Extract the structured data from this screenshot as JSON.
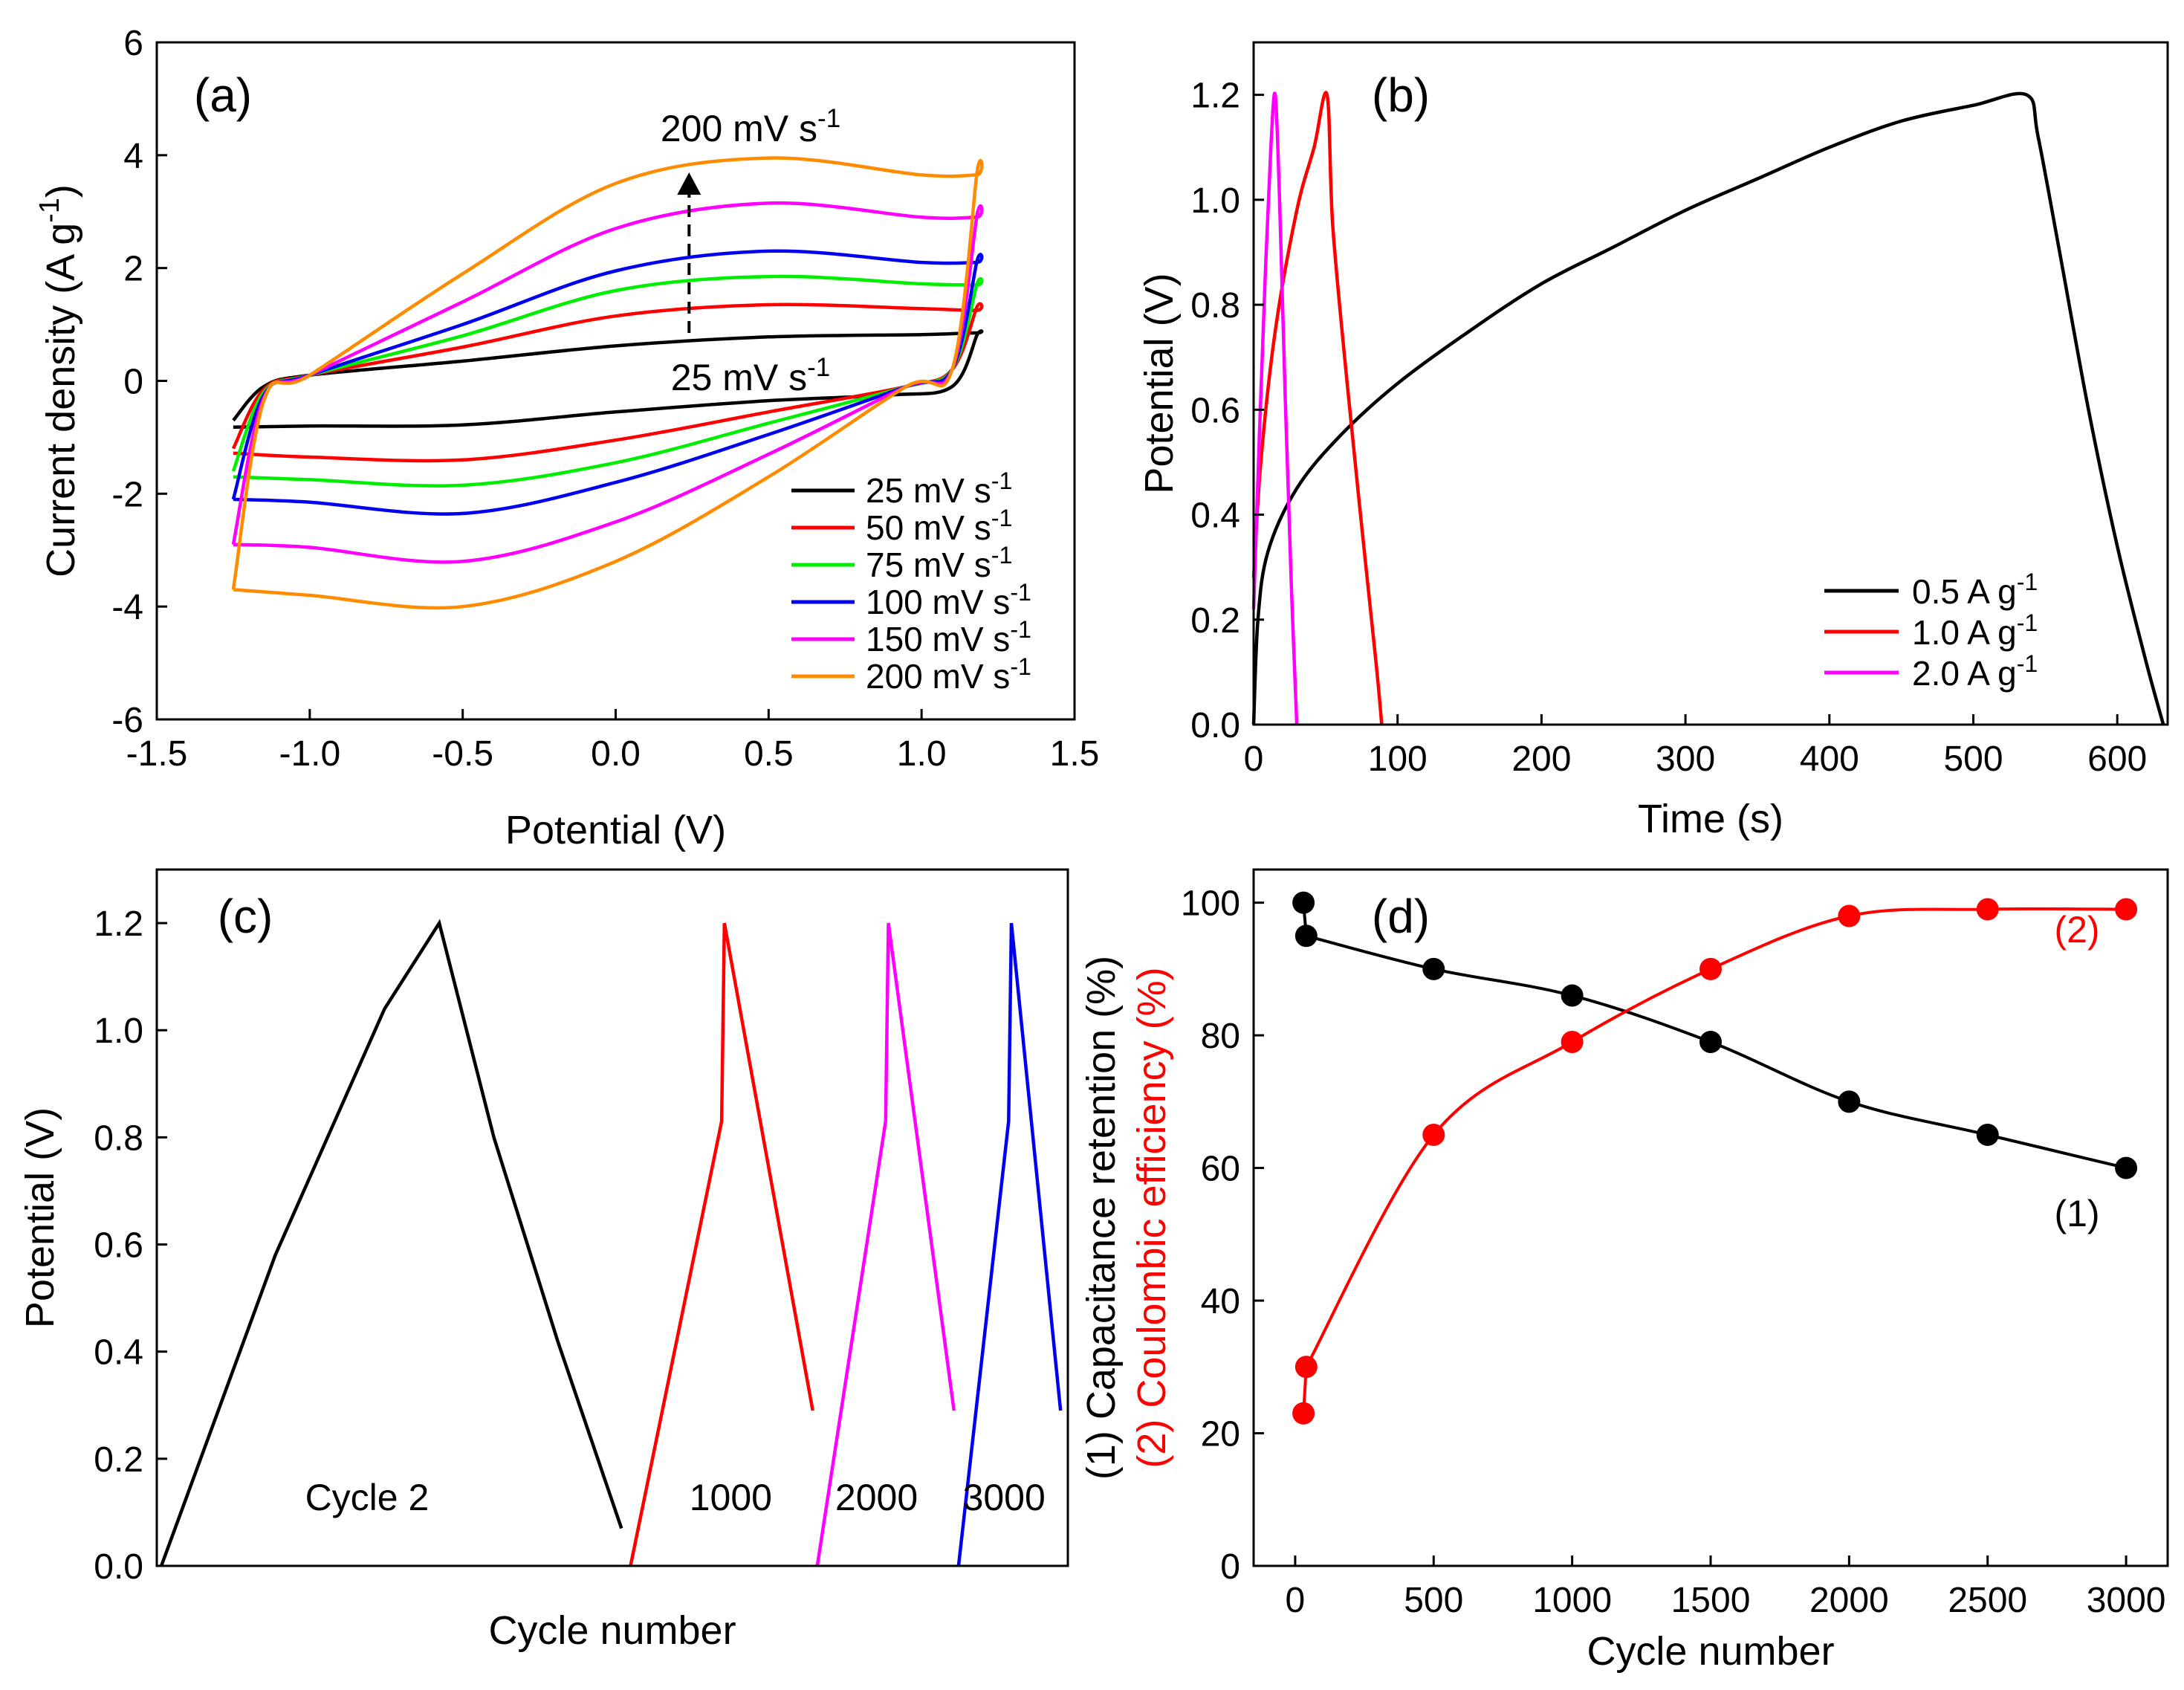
{
  "chart_data": [
    {
      "panel": "a",
      "type": "line",
      "panel_label": "(a)",
      "xlabel": "Potential (V)",
      "ylabel": "Current density (A g-1)",
      "xlim": [
        -1.5,
        1.5
      ],
      "ylim": [
        -6,
        6
      ],
      "xticks": [
        "-1.5",
        "-1.0",
        "-0.5",
        "0.0",
        "0.5",
        "1.0",
        "1.5"
      ],
      "yticks": [
        "-6",
        "-4",
        "-2",
        "0",
        "2",
        "4",
        "6"
      ],
      "annotations": {
        "top": "200 mV s-1",
        "bottom": "25 mV s-1"
      },
      "legend_position": "bottom-right",
      "series": [
        {
          "name": "25 mV s-1",
          "color": "#000000",
          "upper": [
            [
              -1.25,
              -0.7
            ],
            [
              -1.15,
              -0.1
            ],
            [
              -1.0,
              0.1
            ],
            [
              -0.5,
              0.35
            ],
            [
              0.0,
              0.62
            ],
            [
              0.5,
              0.78
            ],
            [
              1.0,
              0.82
            ],
            [
              1.18,
              0.85
            ]
          ],
          "lower": [
            [
              1.18,
              0.8
            ],
            [
              1.1,
              -0.1
            ],
            [
              0.9,
              -0.25
            ],
            [
              0.5,
              -0.35
            ],
            [
              0.0,
              -0.55
            ],
            [
              -0.5,
              -0.78
            ],
            [
              -1.0,
              -0.8
            ],
            [
              -1.25,
              -0.82
            ]
          ]
        },
        {
          "name": "50 mV s-1",
          "color": "#ff0000",
          "upper": [
            [
              -1.25,
              -1.2
            ],
            [
              -1.15,
              -0.15
            ],
            [
              -1.0,
              0.1
            ],
            [
              -0.5,
              0.6
            ],
            [
              0.0,
              1.15
            ],
            [
              0.5,
              1.35
            ],
            [
              1.0,
              1.28
            ],
            [
              1.18,
              1.25
            ]
          ],
          "lower": [
            [
              1.18,
              1.3
            ],
            [
              1.1,
              0.2
            ],
            [
              0.95,
              -0.1
            ],
            [
              0.5,
              -0.55
            ],
            [
              0.0,
              -1.05
            ],
            [
              -0.5,
              -1.4
            ],
            [
              -1.0,
              -1.35
            ],
            [
              -1.25,
              -1.28
            ]
          ]
        },
        {
          "name": "75 mV s-1",
          "color": "#00ee00",
          "upper": [
            [
              -1.25,
              -1.6
            ],
            [
              -1.15,
              -0.2
            ],
            [
              -1.0,
              0.1
            ],
            [
              -0.5,
              0.8
            ],
            [
              0.0,
              1.6
            ],
            [
              0.5,
              1.85
            ],
            [
              1.0,
              1.72
            ],
            [
              1.18,
              1.7
            ]
          ],
          "lower": [
            [
              1.18,
              1.7
            ],
            [
              1.1,
              0.2
            ],
            [
              0.95,
              -0.1
            ],
            [
              0.5,
              -0.75
            ],
            [
              0.0,
              -1.45
            ],
            [
              -0.5,
              -1.85
            ],
            [
              -1.0,
              -1.75
            ],
            [
              -1.25,
              -1.7
            ]
          ]
        },
        {
          "name": "100 mV s-1",
          "color": "#0000ee",
          "upper": [
            [
              -1.25,
              -2.1
            ],
            [
              -1.15,
              -0.25
            ],
            [
              -1.0,
              0.1
            ],
            [
              -0.5,
              1.0
            ],
            [
              0.0,
              1.95
            ],
            [
              0.5,
              2.3
            ],
            [
              1.0,
              2.1
            ],
            [
              1.18,
              2.1
            ]
          ],
          "lower": [
            [
              1.18,
              2.1
            ],
            [
              1.1,
              0.2
            ],
            [
              0.95,
              -0.1
            ],
            [
              0.5,
              -0.95
            ],
            [
              0.0,
              -1.8
            ],
            [
              -0.5,
              -2.35
            ],
            [
              -1.0,
              -2.15
            ],
            [
              -1.25,
              -2.1
            ]
          ]
        },
        {
          "name": "150 mV s-1",
          "color": "#ff00ff",
          "upper": [
            [
              -1.25,
              -2.9
            ],
            [
              -1.15,
              -0.3
            ],
            [
              -1.0,
              0.1
            ],
            [
              -0.5,
              1.4
            ],
            [
              0.0,
              2.7
            ],
            [
              0.5,
              3.15
            ],
            [
              1.0,
              2.9
            ],
            [
              1.18,
              2.9
            ]
          ],
          "lower": [
            [
              1.18,
              2.9
            ],
            [
              1.1,
              0.2
            ],
            [
              0.95,
              -0.1
            ],
            [
              0.5,
              -1.3
            ],
            [
              0.0,
              -2.5
            ],
            [
              -0.5,
              -3.2
            ],
            [
              -1.0,
              -2.95
            ],
            [
              -1.25,
              -2.9
            ]
          ]
        },
        {
          "name": "200 mV s-1",
          "color": "#ff8c00",
          "upper": [
            [
              -1.25,
              -3.7
            ],
            [
              -1.15,
              -0.35
            ],
            [
              -1.0,
              0.1
            ],
            [
              -0.5,
              1.9
            ],
            [
              0.0,
              3.5
            ],
            [
              0.5,
              3.95
            ],
            [
              1.0,
              3.65
            ],
            [
              1.18,
              3.65
            ]
          ],
          "lower": [
            [
              1.18,
              3.65
            ],
            [
              1.1,
              0.2
            ],
            [
              0.95,
              -0.1
            ],
            [
              0.5,
              -1.7
            ],
            [
              0.0,
              -3.2
            ],
            [
              -0.5,
              -4.0
            ],
            [
              -1.0,
              -3.8
            ],
            [
              -1.25,
              -3.7
            ]
          ]
        }
      ]
    },
    {
      "panel": "b",
      "type": "line",
      "panel_label": "(b)",
      "xlabel": "Time (s)",
      "ylabel": "Potential (V)",
      "xlim": [
        0,
        635
      ],
      "ylim": [
        0,
        1.3
      ],
      "xticks": [
        "0",
        "100",
        "200",
        "300",
        "400",
        "500",
        "600"
      ],
      "yticks": [
        "0.0",
        "0.2",
        "0.4",
        "0.6",
        "0.8",
        "1.0",
        "1.2"
      ],
      "legend_position": "bottom-right",
      "series": [
        {
          "name": "0.5 A g-1",
          "color": "#000000",
          "points": [
            [
              0,
              0
            ],
            [
              3,
              0.2
            ],
            [
              10,
              0.33
            ],
            [
              30,
              0.45
            ],
            [
              60,
              0.55
            ],
            [
              100,
              0.65
            ],
            [
              150,
              0.75
            ],
            [
              200,
              0.84
            ],
            [
              250,
              0.91
            ],
            [
              300,
              0.98
            ],
            [
              350,
              1.04
            ],
            [
              400,
              1.1
            ],
            [
              450,
              1.15
            ],
            [
              500,
              1.18
            ],
            [
              537,
              1.2
            ],
            [
              545,
              1.12
            ],
            [
              560,
              0.9
            ],
            [
              580,
              0.6
            ],
            [
              600,
              0.34
            ],
            [
              620,
              0.12
            ],
            [
              632,
              0
            ]
          ]
        },
        {
          "name": "1.0 A g-1",
          "color": "#ff0000",
          "points": [
            [
              0,
              0.28
            ],
            [
              5,
              0.5
            ],
            [
              15,
              0.75
            ],
            [
              30,
              0.98
            ],
            [
              42,
              1.1
            ],
            [
              51,
              1.2
            ],
            [
              55,
              0.95
            ],
            [
              65,
              0.65
            ],
            [
              75,
              0.38
            ],
            [
              85,
              0.12
            ],
            [
              89,
              0
            ]
          ]
        },
        {
          "name": "2.0 A g-1",
          "color": "#ff00ff",
          "points": [
            [
              0,
              0.22
            ],
            [
              4,
              0.55
            ],
            [
              8,
              0.85
            ],
            [
              12,
              1.1
            ],
            [
              15,
              1.2
            ],
            [
              18,
              1.0
            ],
            [
              22,
              0.62
            ],
            [
              26,
              0.28
            ],
            [
              30,
              0
            ]
          ]
        }
      ]
    },
    {
      "panel": "c",
      "type": "line",
      "panel_label": "(c)",
      "xlabel": "Cycle number",
      "ylabel": "Potential (V)",
      "xlim": [
        0,
        100
      ],
      "ylim": [
        0,
        1.3
      ],
      "yticks": [
        "0.0",
        "0.2",
        "0.4",
        "0.6",
        "0.8",
        "1.0",
        "1.2"
      ],
      "series": [
        {
          "name": "Cycle 2",
          "color": "#000000",
          "points": [
            [
              0.5,
              0
            ],
            [
              13,
              0.58
            ],
            [
              25,
              1.04
            ],
            [
              31,
              1.2
            ],
            [
              37,
              0.8
            ],
            [
              44,
              0.42
            ],
            [
              51,
              0.07
            ]
          ]
        },
        {
          "name": "1000",
          "color": "#ff0000",
          "points": [
            [
              52,
              0
            ],
            [
              62,
              0.83
            ],
            [
              62.3,
              1.2
            ],
            [
              72,
              0.29
            ]
          ]
        },
        {
          "name": "2000",
          "color": "#ff00ff",
          "points": [
            [
              72.5,
              0
            ],
            [
              80,
              0.83
            ],
            [
              80.3,
              1.2
            ],
            [
              87.5,
              0.29
            ]
          ]
        },
        {
          "name": "3000",
          "color": "#0000ee",
          "points": [
            [
              88,
              0
            ],
            [
              93.5,
              0.83
            ],
            [
              93.8,
              1.2
            ],
            [
              99.2,
              0.29
            ]
          ]
        }
      ]
    },
    {
      "panel": "d",
      "type": "scatter",
      "panel_label": "(d)",
      "xlabel": "Cycle number",
      "ylabel_1": "(1) Capacitance retention (%)",
      "ylabel_2": "(2) Coulombic efficiency (%)",
      "xlim": [
        -150,
        3150
      ],
      "ylim": [
        0,
        105
      ],
      "xticks": [
        "0",
        "500",
        "1000",
        "1500",
        "2000",
        "2500",
        "3000"
      ],
      "yticks": [
        "0",
        "20",
        "40",
        "60",
        "80",
        "100"
      ],
      "series": [
        {
          "name": "(1)",
          "color": "#000000",
          "x": [
            30,
            40,
            500,
            1000,
            1500,
            2000,
            2500,
            3000
          ],
          "y": [
            100,
            95,
            90,
            86,
            79,
            70,
            65,
            60
          ]
        },
        {
          "name": "(2)",
          "color": "#ff0000",
          "x": [
            30,
            40,
            500,
            1000,
            1500,
            2000,
            2500,
            3000
          ],
          "y": [
            23,
            30,
            65,
            79,
            90,
            98,
            99,
            99
          ]
        }
      ]
    }
  ]
}
